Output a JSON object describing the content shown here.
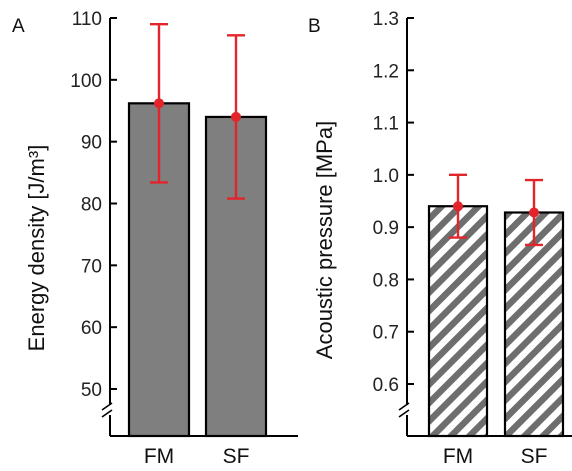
{
  "colors": {
    "bar_fill": "#7f7f7f",
    "hatch": "#6e6e6e",
    "error": "#e3242b",
    "axis": "#000000"
  },
  "chart_data": [
    {
      "panel": "A",
      "type": "bar",
      "ylabel": "Energy density [J/m³]",
      "categories": [
        "FM",
        "SF"
      ],
      "values": [
        96.2,
        94.0
      ],
      "errors": [
        12.8,
        13.2
      ],
      "ylim": [
        44,
        110
      ],
      "yticks": [
        50,
        60,
        70,
        80,
        90,
        100,
        110
      ],
      "axis_break": true,
      "bar_style": "solid-gray",
      "error_color": "#e3242b"
    },
    {
      "panel": "B",
      "type": "bar",
      "ylabel": "Acoustic pressure [MPa]",
      "categories": [
        "FM",
        "SF"
      ],
      "values": [
        0.94,
        0.928
      ],
      "errors": [
        0.06,
        0.062
      ],
      "ylim": [
        0.5,
        1.3
      ],
      "yticks": [
        0.6,
        0.7,
        0.8,
        0.9,
        1.0,
        1.1,
        1.2,
        1.3
      ],
      "ytick_format": "0.0",
      "axis_break": true,
      "bar_style": "hatched",
      "error_color": "#e3242b"
    }
  ]
}
